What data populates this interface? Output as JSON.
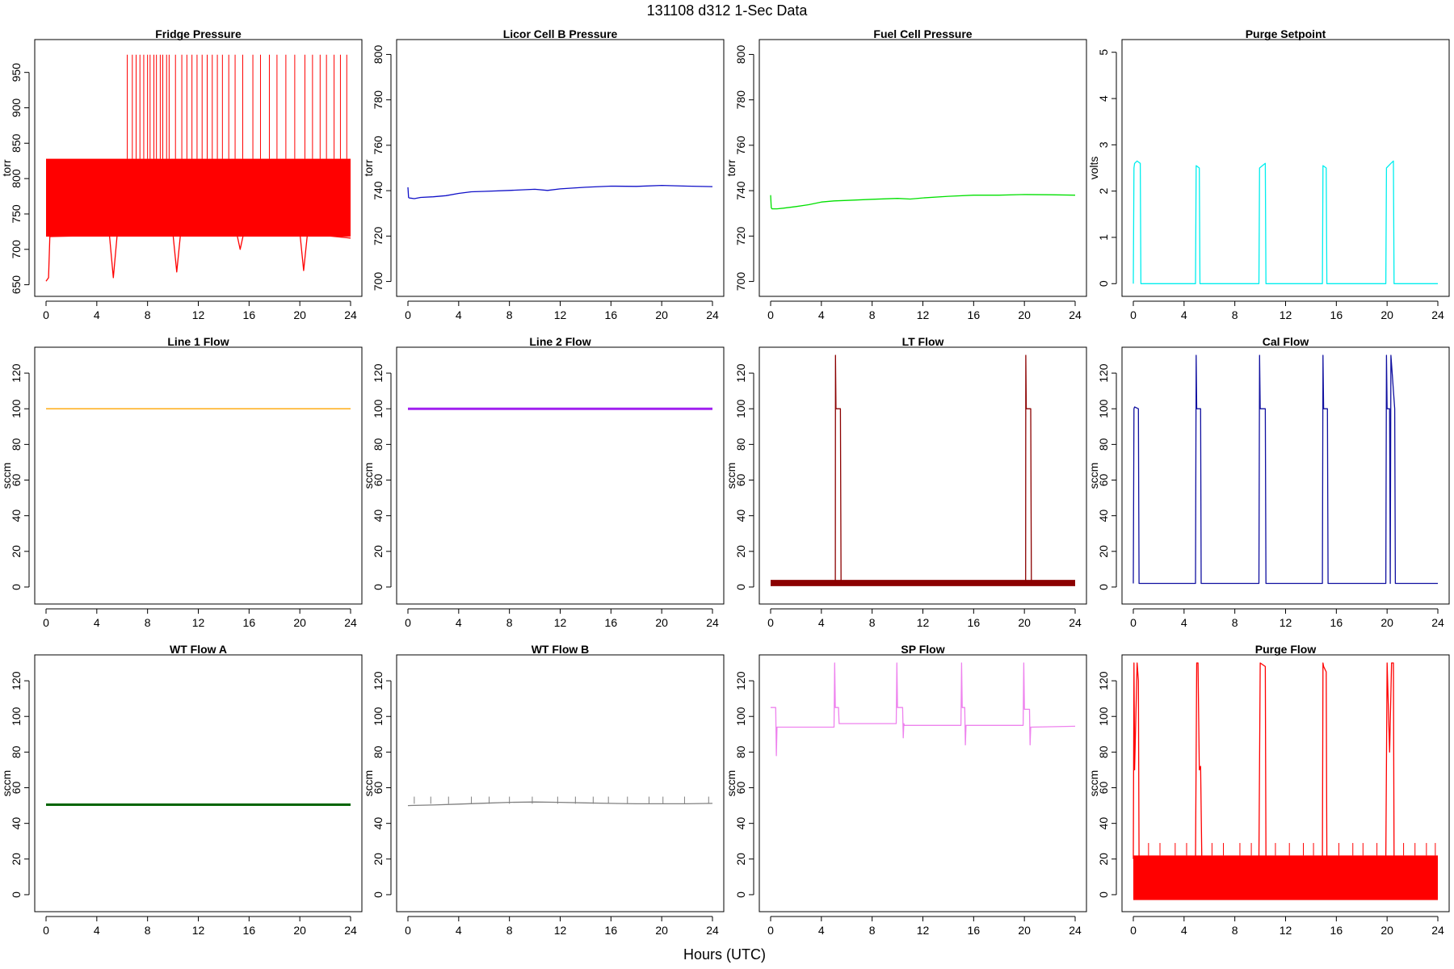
{
  "figure": {
    "title": "131108   d312   1-Sec Data",
    "xlabel": "Hours (UTC)"
  },
  "chart_data": [
    {
      "type": "line",
      "title": "Fridge Pressure",
      "ylabel": "torr",
      "color": "#ff0000",
      "xlim": [
        0,
        24
      ],
      "ylim": [
        645,
        985
      ],
      "xticks": [
        0,
        4,
        8,
        12,
        16,
        20,
        24
      ],
      "yticks": [
        650,
        700,
        750,
        800,
        850,
        900,
        950
      ],
      "band": {
        "x": [
          0,
          24
        ],
        "low": 718,
        "high": 828
      },
      "series": [
        {
          "x": [
            0,
            0.2,
            0.3,
            5,
            5.3,
            5.6,
            10,
            10.3,
            10.6,
            15,
            15.3,
            15.6,
            20,
            20.3,
            20.6,
            24
          ],
          "y": [
            655,
            660,
            718,
            720,
            660,
            720,
            722,
            668,
            722,
            725,
            700,
            725,
            724,
            670,
            722,
            716
          ]
        }
      ],
      "spikes": {
        "base": 828,
        "peak": 975,
        "x": [
          6.4,
          6.8,
          7.1,
          7.4,
          7.7,
          8.0,
          8.2,
          8.5,
          8.7,
          9.0,
          9.2,
          9.5,
          9.7,
          10.2,
          10.7,
          11.1,
          11.5,
          11.9,
          12.3,
          12.7,
          13.1,
          13.5,
          13.9,
          14.4,
          14.9,
          15.5,
          16.3,
          16.9,
          17.6,
          18.2,
          18.9,
          19.6,
          20.4,
          21.0,
          21.6,
          22.1,
          22.7,
          23.2,
          23.7
        ]
      }
    },
    {
      "type": "line",
      "title": "Licor Cell B Pressure",
      "ylabel": "torr",
      "color": "#1010c8",
      "xlim": [
        0,
        24
      ],
      "ylim": [
        697,
        803
      ],
      "xticks": [
        0,
        4,
        8,
        12,
        16,
        20,
        24
      ],
      "yticks": [
        700,
        720,
        740,
        760,
        780,
        800
      ],
      "series": [
        {
          "x": [
            0,
            0.05,
            0.1,
            0.5,
            1,
            2,
            3,
            4,
            5,
            6,
            8,
            10,
            11,
            12,
            14,
            16,
            18,
            20,
            22,
            24
          ],
          "y": [
            741.5,
            737,
            736.8,
            736.5,
            737,
            737.3,
            737.8,
            738.8,
            739.5,
            739.7,
            740.1,
            740.6,
            740.1,
            740.8,
            741.5,
            742,
            741.9,
            742.3,
            742,
            741.8
          ]
        }
      ]
    },
    {
      "type": "line",
      "title": "Fuel Cell Pressure",
      "ylabel": "torr",
      "color": "#00e000",
      "xlim": [
        0,
        24
      ],
      "ylim": [
        697,
        803
      ],
      "xticks": [
        0,
        4,
        8,
        12,
        16,
        20,
        24
      ],
      "yticks": [
        700,
        720,
        740,
        760,
        780,
        800
      ],
      "series": [
        {
          "x": [
            0,
            0.05,
            0.1,
            0.5,
            1,
            2,
            3,
            4,
            5,
            6,
            8,
            10,
            11,
            12,
            14,
            16,
            18,
            20,
            22,
            24
          ],
          "y": [
            738,
            732.5,
            732,
            732,
            732.3,
            733,
            733.8,
            735,
            735.5,
            735.7,
            736.2,
            736.6,
            736.3,
            736.8,
            737.5,
            738,
            738,
            738.3,
            738.2,
            738
          ]
        }
      ]
    },
    {
      "type": "line",
      "title": "Purge Setpoint",
      "ylabel": "volts",
      "color": "#00eeee",
      "xlim": [
        0,
        24
      ],
      "ylim": [
        -0.1,
        5.1
      ],
      "xticks": [
        0,
        4,
        8,
        12,
        16,
        20,
        24
      ],
      "yticks": [
        0,
        1,
        2,
        3,
        4,
        5
      ],
      "series": [
        {
          "x": [
            0,
            0.05,
            0.1,
            0.3,
            0.55,
            0.6,
            4.9,
            4.95,
            5.2,
            5.25,
            9.9,
            9.95,
            10.4,
            10.45,
            14.9,
            14.95,
            15.2,
            15.25,
            19.9,
            19.95,
            20.3,
            20.5,
            20.55,
            24
          ],
          "y": [
            0,
            2.5,
            2.6,
            2.65,
            2.6,
            0,
            0,
            2.55,
            2.5,
            0,
            0,
            2.5,
            2.6,
            0,
            0,
            2.55,
            2.5,
            0,
            0,
            2.5,
            2.6,
            2.65,
            0,
            0
          ]
        }
      ]
    },
    {
      "type": "line",
      "title": "Line 1 Flow",
      "ylabel": "sccm",
      "color": "#ffa500",
      "xlim": [
        0,
        24
      ],
      "ylim": [
        -5,
        130
      ],
      "xticks": [
        0,
        4,
        8,
        12,
        16,
        20,
        24
      ],
      "yticks": [
        0,
        20,
        40,
        60,
        80,
        100,
        120
      ],
      "series": [
        {
          "x": [
            0,
            24
          ],
          "y": [
            100,
            100
          ]
        }
      ]
    },
    {
      "type": "line",
      "title": "Line 2 Flow",
      "ylabel": "sccm",
      "color": "#a020f0",
      "xlim": [
        0,
        24
      ],
      "ylim": [
        -5,
        130
      ],
      "xticks": [
        0,
        4,
        8,
        12,
        16,
        20,
        24
      ],
      "yticks": [
        0,
        20,
        40,
        60,
        80,
        100,
        120
      ],
      "series": [
        {
          "x": [
            0,
            24
          ],
          "y": [
            100,
            100
          ]
        }
      ]
    },
    {
      "type": "line",
      "title": "LT Flow",
      "ylabel": "sccm",
      "color": "#8b0000",
      "xlim": [
        0,
        24
      ],
      "ylim": [
        -5,
        130
      ],
      "xticks": [
        0,
        4,
        8,
        12,
        16,
        20,
        24
      ],
      "yticks": [
        0,
        20,
        40,
        60,
        80,
        100,
        120
      ],
      "band": {
        "x": [
          0,
          24
        ],
        "low": 0.5,
        "high": 4
      },
      "series": [
        {
          "x": [
            0,
            5.1,
            5.11,
            5.15,
            5.5,
            5.55,
            20.1,
            20.11,
            20.15,
            20.5,
            20.55,
            24
          ],
          "y": [
            2,
            2,
            130,
            100,
            100,
            2,
            2,
            130,
            100,
            100,
            2,
            2
          ]
        }
      ]
    },
    {
      "type": "line",
      "title": "Cal Flow",
      "ylabel": "sccm",
      "color": "#1010a0",
      "xlim": [
        0,
        24
      ],
      "ylim": [
        -5,
        130
      ],
      "xticks": [
        0,
        4,
        8,
        12,
        16,
        20,
        24
      ],
      "yticks": [
        0,
        20,
        40,
        60,
        80,
        100,
        120
      ],
      "series": [
        {
          "x": [
            0,
            0.05,
            0.1,
            0.4,
            0.45,
            4.9,
            4.95,
            5.0,
            5.3,
            5.35,
            9.9,
            9.95,
            10.0,
            10.4,
            10.45,
            14.9,
            14.95,
            15.0,
            15.3,
            15.35,
            19.9,
            19.95,
            20.0,
            20.2,
            20.25,
            20.3,
            20.6,
            20.65,
            24
          ],
          "y": [
            2,
            100,
            101,
            100,
            2,
            2,
            130,
            100,
            100,
            2,
            2,
            130,
            100,
            100,
            2,
            2,
            130,
            100,
            100,
            2,
            2,
            130,
            100,
            100,
            2,
            130,
            100,
            2,
            2
          ]
        }
      ]
    },
    {
      "type": "line",
      "title": "WT Flow A",
      "ylabel": "sccm",
      "color": "#006400",
      "xlim": [
        0,
        24
      ],
      "ylim": [
        -5,
        130
      ],
      "xticks": [
        0,
        4,
        8,
        12,
        16,
        20,
        24
      ],
      "yticks": [
        0,
        20,
        40,
        60,
        80,
        100,
        120
      ],
      "series": [
        {
          "x": [
            0,
            24
          ],
          "y": [
            50.5,
            50.5
          ]
        }
      ]
    },
    {
      "type": "line",
      "title": "WT Flow B",
      "ylabel": "sccm",
      "color": "#808080",
      "xlim": [
        0,
        24
      ],
      "ylim": [
        -5,
        130
      ],
      "xticks": [
        0,
        4,
        8,
        12,
        16,
        20,
        24
      ],
      "yticks": [
        0,
        20,
        40,
        60,
        80,
        100,
        120
      ],
      "series": [
        {
          "x": [
            0,
            2,
            4,
            6,
            8,
            10,
            12,
            14,
            16,
            18,
            20,
            22,
            24
          ],
          "y": [
            50,
            50.3,
            50.8,
            51.3,
            51.8,
            52,
            51.8,
            51.5,
            51.2,
            51,
            51,
            51,
            51.2
          ]
        }
      ],
      "spikes": {
        "base": 51,
        "peak": 55,
        "x": [
          0.5,
          1.8,
          3.2,
          5.0,
          6.4,
          8.0,
          9.8,
          11.8,
          13.2,
          14.6,
          15.8,
          17.3,
          19.0,
          20.1,
          21.8,
          23.7
        ]
      }
    },
    {
      "type": "line",
      "title": "SP Flow",
      "ylabel": "sccm",
      "color": "#ee82ee",
      "xlim": [
        0,
        24
      ],
      "ylim": [
        -5,
        130
      ],
      "xticks": [
        0,
        4,
        8,
        12,
        16,
        20,
        24
      ],
      "yticks": [
        0,
        20,
        40,
        60,
        80,
        100,
        120
      ],
      "series": [
        {
          "x": [
            0,
            0.4,
            0.45,
            0.5,
            0.55,
            5.0,
            5.05,
            5.1,
            5.35,
            5.4,
            8.0,
            8.05,
            9.9,
            9.95,
            10.0,
            10.4,
            10.45,
            10.5,
            10.55,
            15.0,
            15.05,
            15.1,
            15.3,
            15.35,
            15.4,
            19.9,
            19.95,
            20.0,
            20.4,
            20.45,
            20.5,
            24
          ],
          "y": [
            105,
            105,
            78,
            94,
            94,
            94,
            130,
            105,
            105,
            96,
            96,
            96,
            96,
            130,
            105,
            105,
            88,
            96,
            95,
            95,
            130,
            105,
            105,
            84,
            95,
            95,
            130,
            104,
            104,
            84,
            94,
            94.5
          ]
        }
      ]
    },
    {
      "type": "line",
      "title": "Purge Flow",
      "ylabel": "sccm",
      "color": "#ff0000",
      "xlim": [
        0,
        24
      ],
      "ylim": [
        -5,
        130
      ],
      "xticks": [
        0,
        4,
        8,
        12,
        16,
        20,
        24
      ],
      "yticks": [
        0,
        20,
        40,
        60,
        80,
        100,
        120
      ],
      "band": {
        "x": [
          0,
          24
        ],
        "low": -3,
        "high": 22
      },
      "series": [
        {
          "x": [
            0,
            0.05,
            0.1,
            0.3,
            0.4,
            0.45,
            4.9,
            5.0,
            5.1,
            5.2,
            5.3,
            5.4,
            9.9,
            10.0,
            10.4,
            10.45,
            14.9,
            14.95,
            15.0,
            15.2,
            15.25,
            19.9,
            20.0,
            20.2,
            20.35,
            20.5,
            20.55,
            24
          ],
          "y": [
            20,
            130,
            70,
            130,
            120,
            20,
            20,
            130,
            130,
            70,
            72,
            20,
            20,
            130,
            128,
            20,
            20,
            130,
            128,
            125,
            20,
            20,
            130,
            80,
            130,
            130,
            20,
            20
          ]
        }
      ],
      "spikes": {
        "base": 22,
        "peak": 29,
        "x": [
          1.2,
          2.1,
          3.3,
          4.2,
          6.2,
          7.1,
          8.4,
          9.3,
          11.2,
          12.3,
          13.4,
          14.2,
          16.2,
          17.3,
          18.1,
          19.2,
          21.3,
          22.2,
          23.1,
          23.8
        ]
      }
    }
  ]
}
